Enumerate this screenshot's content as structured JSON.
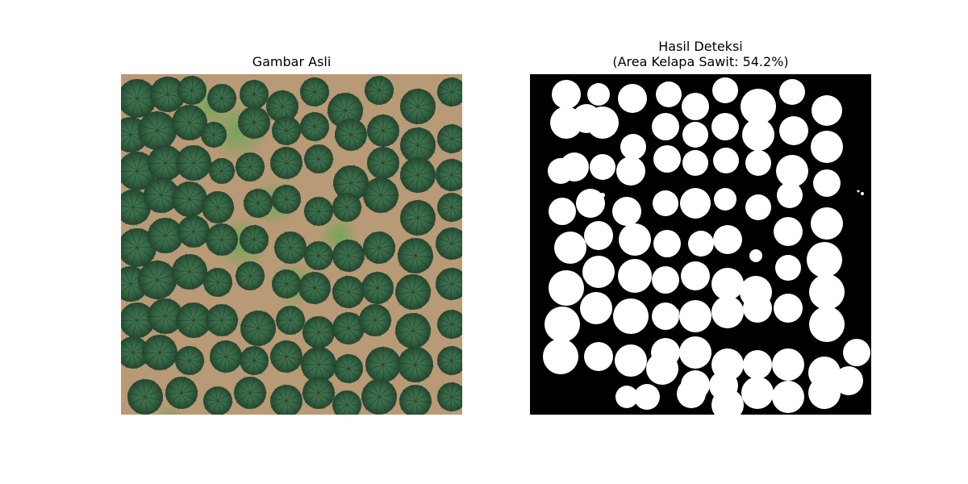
{
  "figure": {
    "left_panel": {
      "title": "Gambar Asli"
    },
    "right_panel": {
      "title_line1": "Hasil Deteksi",
      "title_line2": "(Area Kelapa Sawit: 54.2%)",
      "area_percent": 54.2
    }
  },
  "colors": {
    "ground": "#b99a76",
    "grass": "#5a9a49",
    "palm_dark": "#274f37",
    "palm_mid": "#356645",
    "palm_light": "#4b7d58",
    "mask_background": "#000000",
    "mask_foreground": "#ffffff"
  }
}
